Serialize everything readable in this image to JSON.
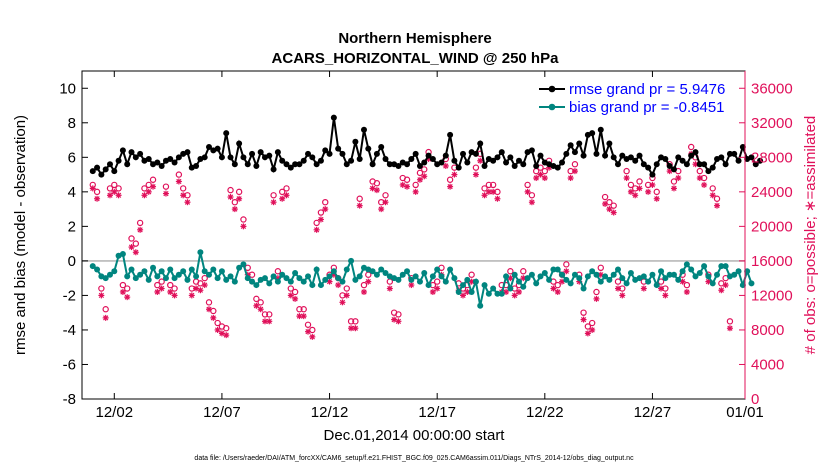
{
  "chart_data": {
    "type": "line",
    "title": "Northern Hemisphere",
    "subtitle": "ACARS_HORIZONTAL_WIND @ 250 hPa",
    "xlabel": "Dec.01,2014 00:00:00 start",
    "ylabel": "rmse and bias (model - observation)",
    "y2label": "# of obs: o=possible; ∗=assimilated",
    "footnote": "data file: /Users/raeder/DAI/ATM_forcXX/CAM6_setup/f.e21.FHIST_BGC.f09_025.CAM6assim.011/Diags_NTrS_2014-12/obs_diag_output.nc",
    "xlim": [
      0.5,
      31.3
    ],
    "ylim": [
      -8,
      11
    ],
    "y2lim": [
      0,
      38000
    ],
    "x_ticks": [
      {
        "value": 2,
        "label": "12/02"
      },
      {
        "value": 7,
        "label": "12/07"
      },
      {
        "value": 12,
        "label": "12/12"
      },
      {
        "value": 17,
        "label": "12/17"
      },
      {
        "value": 22,
        "label": "12/22"
      },
      {
        "value": 27,
        "label": "12/27"
      },
      {
        "value": 32,
        "label": "01/01"
      }
    ],
    "y_ticks": [
      -8,
      -6,
      -4,
      -2,
      0,
      2,
      4,
      6,
      8,
      10
    ],
    "y2_ticks": [
      0,
      4000,
      8000,
      12000,
      16000,
      20000,
      24000,
      28000,
      32000,
      36000
    ],
    "y2_tick_labels": [
      "0",
      "4000",
      "8000",
      "12000",
      "16000",
      "20000",
      "24000",
      "28000",
      "32000",
      "36000"
    ],
    "legend": [
      "rmse grand pr = 5.9476",
      "bias grand pr = -0.8451"
    ],
    "legend_position": "top-right",
    "colors": {
      "rmse": "#000000",
      "bias": "#00857f",
      "obs": "#e0105a",
      "zero_line": "#b8b8b8",
      "legend_text": "#0000ff"
    },
    "rmse": [
      5.2,
      5.4,
      5.0,
      5.3,
      5.6,
      5.2,
      5.8,
      6.4,
      5.6,
      6.3,
      6.0,
      6.2,
      5.8,
      5.9,
      5.6,
      5.7,
      5.5,
      5.8,
      5.9,
      5.7,
      6.0,
      6.2,
      6.3,
      5.4,
      5.5,
      5.9,
      6.0,
      6.6,
      6.4,
      6.5,
      6.0,
      7.4,
      6.0,
      5.6,
      6.8,
      6.0,
      5.6,
      6.2,
      5.5,
      6.3,
      6.0,
      6.1,
      5.3,
      6.3,
      5.8,
      5.6,
      5.4,
      5.6,
      5.6,
      5.8,
      6.2,
      6.0,
      5.6,
      5.8,
      6.4,
      6.2,
      8.3,
      6.5,
      6.2,
      5.6,
      5.8,
      6.9,
      5.9,
      7.6,
      6.5,
      5.6,
      6.2,
      6.6,
      5.9,
      5.6,
      5.6,
      5.5,
      5.7,
      5.6,
      5.9,
      6.2,
      5.5,
      5.7,
      6.1,
      5.9,
      5.6,
      5.7,
      6.1,
      7.3,
      5.8,
      5.4,
      6.2,
      5.7,
      6.3,
      6.2,
      6.8,
      5.5,
      5.9,
      5.8,
      6.0,
      6.3,
      5.7,
      6.0,
      5.5,
      5.8,
      5.6,
      6.3,
      6.4,
      5.5,
      6.1,
      5.7,
      5.6,
      5.5,
      5.4,
      5.7,
      6.2,
      6.7,
      6.3,
      6.8,
      6.1,
      7.3,
      7.4,
      6.2,
      7.6,
      6.1,
      6.8,
      6.0,
      5.6,
      6.1,
      5.9,
      6.0,
      5.8,
      6.1,
      5.6,
      5.4,
      5.0,
      5.6,
      6.0,
      5.9,
      5.5,
      5.3,
      6.0,
      5.8,
      5.6,
      6.1,
      6.3,
      5.6,
      5.6,
      5.2,
      5.4,
      5.9,
      6.0,
      5.6,
      6.2,
      6.2,
      5.8,
      6.6,
      5.9,
      6.0,
      5.6,
      5.8
    ],
    "bias": [
      -0.3,
      -0.5,
      -0.9,
      -1.0,
      -0.8,
      -0.6,
      0.3,
      0.4,
      -0.9,
      -0.5,
      -1.0,
      -0.8,
      -0.6,
      -1.1,
      -0.4,
      -0.9,
      -0.6,
      -1.0,
      -0.5,
      -1.0,
      -0.8,
      -0.6,
      -1.1,
      -0.5,
      -0.9,
      0.5,
      -0.6,
      -0.8,
      -0.5,
      -1.0,
      -0.6,
      -1.1,
      -0.9,
      -1.2,
      -0.4,
      -0.2,
      -1.0,
      -1.2,
      -1.4,
      -1.1,
      -1.0,
      -1.3,
      -0.9,
      -1.2,
      -0.8,
      -1.0,
      -1.2,
      -0.7,
      -1.0,
      -1.2,
      -0.9,
      -1.4,
      -0.5,
      -1.4,
      -1.1,
      -0.9,
      -0.6,
      -1.0,
      -1.2,
      -0.5,
      0.0,
      -1.1,
      -0.9,
      -0.4,
      -0.5,
      -0.6,
      -0.8,
      -0.5,
      -0.7,
      -0.9,
      -1.0,
      -1.1,
      -0.8,
      -0.6,
      -1.1,
      -0.9,
      -1.2,
      -0.7,
      -1.4,
      -0.9,
      -0.5,
      -0.9,
      -1.2,
      -0.5,
      -1.0,
      -1.8,
      -1.4,
      -1.1,
      -1.8,
      -1.2,
      -2.6,
      -1.4,
      -1.9,
      -1.6,
      -1.9,
      -1.9,
      -0.9,
      -1.6,
      -0.8,
      -1.2,
      -1.5,
      -1.0,
      -0.8,
      -1.3,
      -0.9,
      -0.7,
      -1.1,
      -0.5,
      -0.5,
      -0.8,
      -1.1,
      -1.3,
      -0.8,
      -1.0,
      -1.6,
      -0.9,
      -0.6,
      -0.8,
      -1.2,
      -0.9,
      -1.1,
      -0.8,
      -0.5,
      -1.0,
      -1.3,
      -0.7,
      -1.1,
      -1.0,
      -0.9,
      -1.2,
      -0.8,
      -1.4,
      -0.6,
      -1.0,
      -0.8,
      -0.8,
      -1.1,
      -0.6,
      -0.2,
      -0.5,
      -0.9,
      -0.7,
      -0.3,
      -0.9,
      -1.3,
      -0.8,
      -0.3,
      -0.3,
      -0.9,
      -0.8,
      -0.6,
      -1.4,
      -0.6,
      -1.3
    ],
    "obs_possible": [
      24800,
      24000,
      12800,
      10400,
      24400,
      24800,
      24400,
      13200,
      12800,
      18600,
      18000,
      20400,
      24400,
      24800,
      25400,
      13200,
      13600,
      24600,
      13200,
      12800,
      26000,
      24400,
      23600,
      12800,
      13600,
      13400,
      14000,
      11200,
      10200,
      8800,
      8400,
      8200,
      24200,
      22800,
      24000,
      20800,
      15200,
      14400,
      11600,
      11200,
      9800,
      9800,
      23600,
      14800,
      24000,
      24400,
      12800,
      12400,
      10400,
      10400,
      8600,
      8000,
      20400,
      21600,
      22800,
      14400,
      15200,
      14000,
      12000,
      12800,
      9000,
      9000,
      23200,
      13200,
      14400,
      25200,
      25000,
      22800,
      23600,
      13600,
      10000,
      9800,
      25600,
      25400,
      14000,
      24800,
      26200,
      26600,
      28600,
      13200,
      13600,
      15200,
      27800,
      25400,
      26800,
      13400,
      12800,
      13200,
      14400,
      26800,
      28400,
      24400,
      24800,
      24800,
      24000,
      13200,
      13200,
      14800,
      12800,
      13200,
      14800,
      24800,
      23600,
      26400,
      26800,
      26400,
      27600,
      13600,
      13200,
      14400,
      15600,
      26400,
      27200,
      14400,
      10000,
      8400,
      8800,
      12400,
      15200,
      23400,
      22800,
      22400,
      13600,
      12800,
      26400,
      24800,
      24400,
      25200,
      13600,
      24800,
      25600,
      24000,
      13600,
      12800,
      27200,
      25200,
      26400,
      14400,
      13200,
      29200,
      28000,
      26400,
      25600,
      14400,
      24400,
      23200,
      13400,
      14000,
      9000
    ],
    "obs_assimilated": [
      24400,
      23200,
      12000,
      9400,
      23600,
      24000,
      23600,
      12400,
      11800,
      17600,
      17000,
      19600,
      23600,
      24000,
      24600,
      12400,
      12800,
      23800,
      12400,
      12000,
      25200,
      23600,
      22800,
      12000,
      12800,
      12600,
      13200,
      10400,
      9400,
      8000,
      7600,
      7400,
      23400,
      22000,
      23200,
      20000,
      14400,
      13600,
      10800,
      10400,
      9000,
      9000,
      22800,
      14000,
      23200,
      23600,
      12000,
      11600,
      9600,
      9600,
      7800,
      7200,
      19600,
      20800,
      22000,
      13600,
      14400,
      13200,
      11200,
      12000,
      8200,
      8200,
      22400,
      12400,
      13600,
      24400,
      24200,
      22000,
      22800,
      12800,
      9200,
      9000,
      24800,
      24600,
      13200,
      24000,
      25400,
      25800,
      27800,
      12400,
      12800,
      14400,
      27000,
      24600,
      26000,
      12600,
      12000,
      12400,
      13600,
      26000,
      27600,
      23600,
      24000,
      24000,
      23200,
      12400,
      12400,
      14000,
      12000,
      12400,
      14000,
      24000,
      22800,
      25600,
      26000,
      25600,
      26800,
      12800,
      12400,
      13600,
      14800,
      25600,
      26400,
      13600,
      9200,
      7600,
      8000,
      11600,
      14400,
      22600,
      22000,
      21600,
      12800,
      12000,
      25600,
      24000,
      23600,
      24400,
      12800,
      24000,
      24800,
      23200,
      12800,
      12000,
      26400,
      24400,
      25600,
      13600,
      12400,
      28400,
      27200,
      25600,
      24800,
      13600,
      23600,
      22400,
      12600,
      13200,
      8200
    ]
  }
}
